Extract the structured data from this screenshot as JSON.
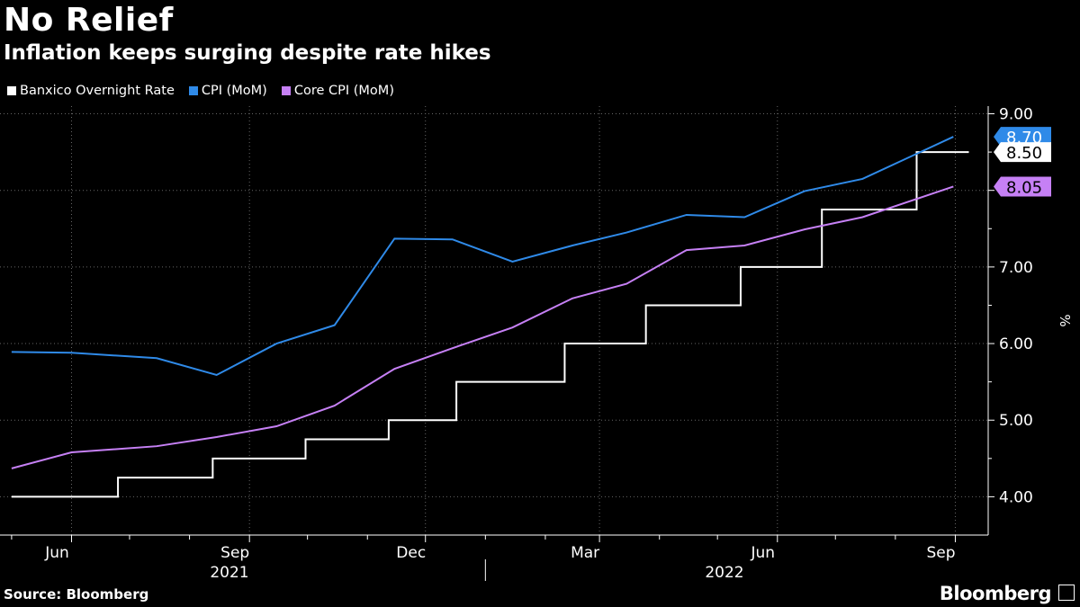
{
  "title": "No Relief",
  "subtitle": "Inflation keeps surging despite rate hikes",
  "source": "Source: Bloomberg",
  "brand": "Bloomberg",
  "chart_data": {
    "type": "line",
    "ylabel": "%",
    "ylim": [
      3.5,
      9.1
    ],
    "y_ticks": [
      "4.00",
      "5.00",
      "6.00",
      "7.00",
      "8.00",
      "9.00"
    ],
    "x_tick_labels": [
      "Jun",
      "Sep",
      "Dec",
      "Mar",
      "Jun",
      "Sep"
    ],
    "x_year_labels": [
      "2021",
      "2022"
    ],
    "series": [
      {
        "name": "Banxico Overnight Rate",
        "color": "#ffffff",
        "end_label": "8.50",
        "steps": [
          {
            "date": "2021-05-01",
            "value": 4.0
          },
          {
            "date": "2021-06-25",
            "value": 4.25
          },
          {
            "date": "2021-08-13",
            "value": 4.5
          },
          {
            "date": "2021-09-30",
            "value": 4.75
          },
          {
            "date": "2021-11-12",
            "value": 5.0
          },
          {
            "date": "2021-12-17",
            "value": 5.5
          },
          {
            "date": "2022-02-11",
            "value": 6.0
          },
          {
            "date": "2022-03-25",
            "value": 6.5
          },
          {
            "date": "2022-05-13",
            "value": 7.0
          },
          {
            "date": "2022-06-24",
            "value": 7.75
          },
          {
            "date": "2022-08-12",
            "value": 8.5
          },
          {
            "date": "2022-09-08",
            "value": 8.5
          }
        ]
      },
      {
        "name": "CPI (MoM)",
        "color": "#2f8ae8",
        "end_label": "8.70",
        "points": [
          {
            "date": "2021-05-01",
            "value": 5.89
          },
          {
            "date": "2021-06-01",
            "value": 5.88
          },
          {
            "date": "2021-07-15",
            "value": 5.81
          },
          {
            "date": "2021-08-15",
            "value": 5.59
          },
          {
            "date": "2021-09-15",
            "value": 6.0
          },
          {
            "date": "2021-10-15",
            "value": 6.24
          },
          {
            "date": "2021-11-15",
            "value": 7.37
          },
          {
            "date": "2021-12-15",
            "value": 7.36
          },
          {
            "date": "2022-01-15",
            "value": 7.07
          },
          {
            "date": "2022-02-15",
            "value": 7.28
          },
          {
            "date": "2022-03-15",
            "value": 7.45
          },
          {
            "date": "2022-04-15",
            "value": 7.68
          },
          {
            "date": "2022-05-15",
            "value": 7.65
          },
          {
            "date": "2022-06-15",
            "value": 7.99
          },
          {
            "date": "2022-07-15",
            "value": 8.15
          },
          {
            "date": "2022-08-31",
            "value": 8.7
          }
        ]
      },
      {
        "name": "Core CPI (MoM)",
        "color": "#c680f5",
        "end_label": "8.05",
        "points": [
          {
            "date": "2021-05-01",
            "value": 4.37
          },
          {
            "date": "2021-06-01",
            "value": 4.58
          },
          {
            "date": "2021-07-15",
            "value": 4.66
          },
          {
            "date": "2021-08-15",
            "value": 4.78
          },
          {
            "date": "2021-09-15",
            "value": 4.92
          },
          {
            "date": "2021-10-15",
            "value": 5.19
          },
          {
            "date": "2021-11-15",
            "value": 5.67
          },
          {
            "date": "2021-12-15",
            "value": 5.94
          },
          {
            "date": "2022-01-15",
            "value": 6.21
          },
          {
            "date": "2022-02-15",
            "value": 6.59
          },
          {
            "date": "2022-03-15",
            "value": 6.78
          },
          {
            "date": "2022-04-15",
            "value": 7.22
          },
          {
            "date": "2022-05-15",
            "value": 7.28
          },
          {
            "date": "2022-06-15",
            "value": 7.49
          },
          {
            "date": "2022-07-15",
            "value": 7.65
          },
          {
            "date": "2022-08-31",
            "value": 8.05
          }
        ]
      }
    ]
  }
}
